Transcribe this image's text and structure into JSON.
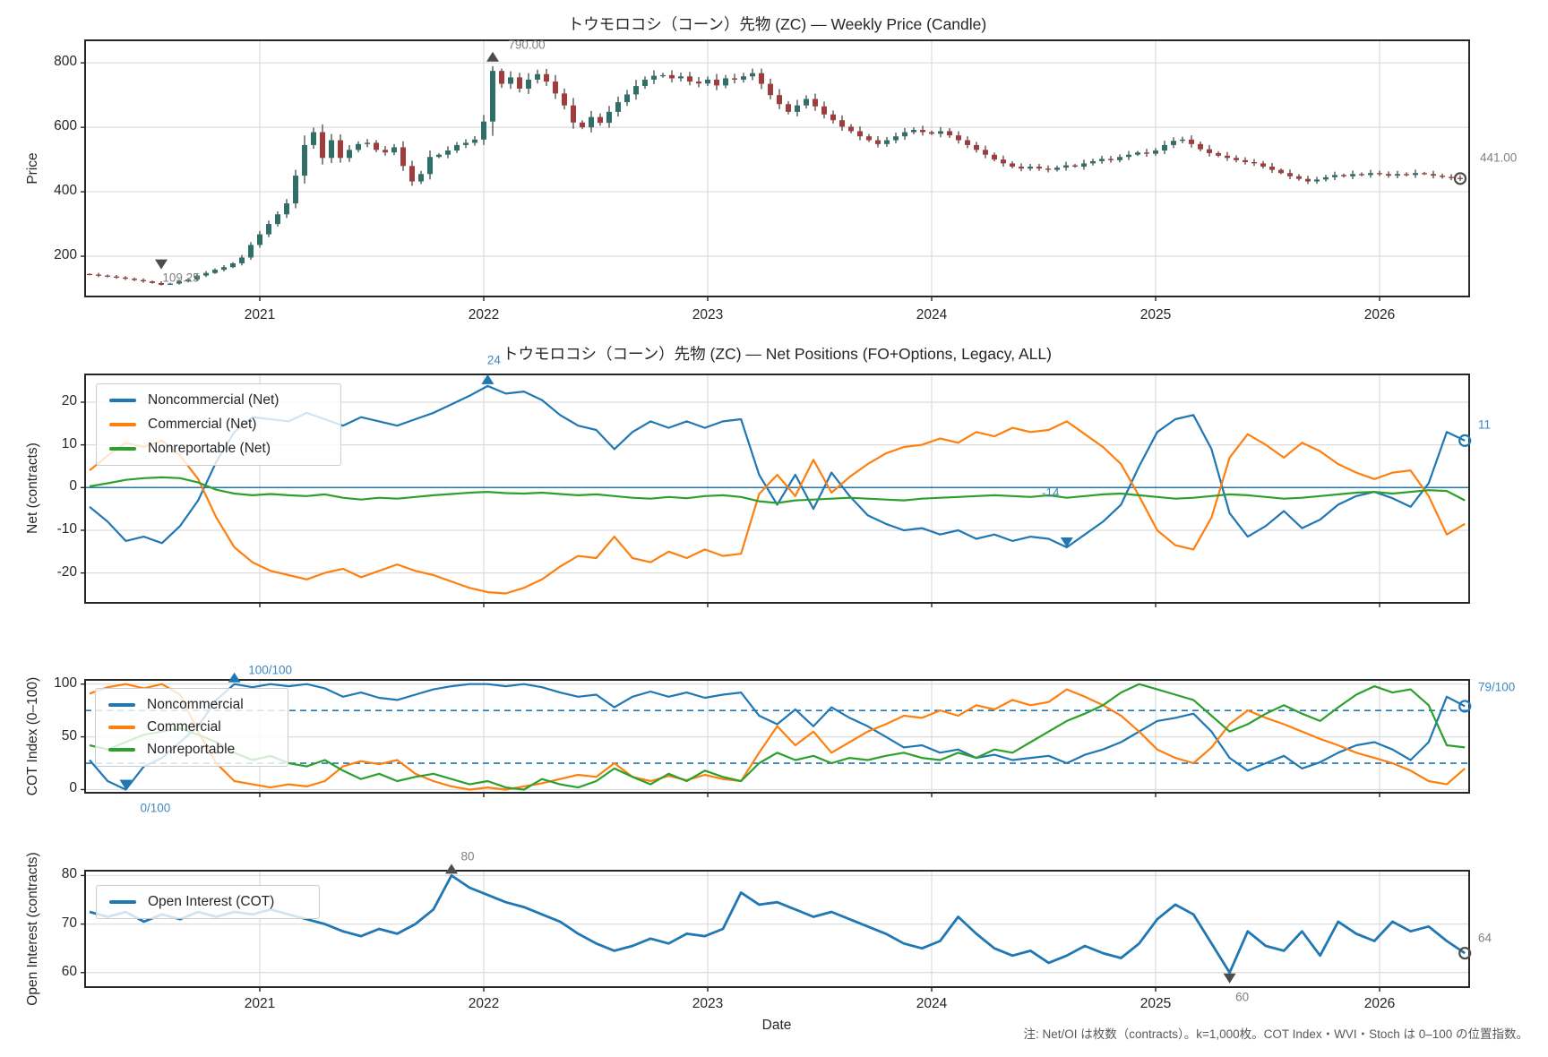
{
  "footnote": "注: Net/OI は枚数（contracts）。k=1,000枚。COT Index・WVI・Stoch は 0–100 の位置指数。",
  "xlabel": "Date",
  "year_ticks": [
    "2021",
    "2022",
    "2023",
    "2024",
    "2025",
    "2026"
  ],
  "colors": {
    "noncommercial": "#1f77b4",
    "commercial": "#ff7f0e",
    "nonreportable": "#2ca02c",
    "open_interest": "#1f77b4",
    "candle_up": "#2e6f68",
    "candle_down": "#a23b3b",
    "wick": "#3a3a3a",
    "grid": "#dcdcdc",
    "spine": "#262626",
    "zero_line": "#1f77b4",
    "threshold_dashed": "#1f77b4",
    "annotation_blue": "#4089c0",
    "annotation_gray": "#808080",
    "marker_dark": "#4d4d4d"
  },
  "chart_data": [
    {
      "id": "price",
      "type": "candlestick",
      "title": "トウモロコシ（コーン）先物 (ZC) — Weekly Price (Candle)",
      "ylabel": "Price",
      "yticks": [
        200,
        400,
        600,
        800
      ],
      "ylim": [
        75,
        870
      ],
      "xlim": [
        2020.22,
        2026.4
      ],
      "x_start": 2020.24,
      "x_step": 0.04,
      "closes": [
        143,
        140,
        137,
        134,
        130,
        126,
        122,
        117,
        111,
        115,
        122,
        128,
        140,
        148,
        158,
        166,
        178,
        196,
        235,
        268,
        300,
        330,
        364,
        450,
        545,
        585,
        505,
        560,
        505,
        530,
        548,
        552,
        530,
        522,
        538,
        480,
        432,
        455,
        508,
        515,
        528,
        545,
        552,
        562,
        618,
        775,
        735,
        755,
        720,
        748,
        765,
        742,
        705,
        668,
        615,
        600,
        632,
        614,
        648,
        678,
        702,
        728,
        748,
        760,
        762,
        752,
        758,
        742,
        736,
        748,
        730,
        752,
        748,
        758,
        768,
        735,
        700,
        672,
        648,
        668,
        688,
        665,
        640,
        622,
        602,
        588,
        572,
        560,
        548,
        560,
        572,
        585,
        592,
        585,
        580,
        588,
        575,
        560,
        545,
        530,
        515,
        500,
        488,
        478,
        472,
        478,
        472,
        468,
        475,
        482,
        478,
        488,
        495,
        502,
        498,
        508,
        515,
        522,
        518,
        528,
        545,
        558,
        562,
        548,
        532,
        520,
        512,
        505,
        498,
        492,
        488,
        478,
        468,
        458,
        448,
        440,
        432,
        438,
        445,
        452,
        448,
        455,
        452,
        458,
        455,
        450,
        455,
        452,
        458,
        455,
        450,
        446,
        443,
        441
      ],
      "annotations": {
        "max": {
          "t": 2022.04,
          "value": 790.0,
          "label": "790.00"
        },
        "min": {
          "t": 2020.56,
          "value": 109.25,
          "label": "109.25"
        },
        "last": {
          "value": 441.0,
          "label": "441.00"
        }
      }
    },
    {
      "id": "net",
      "type": "line",
      "title": "トウモロコシ（コーン）先物 (ZC) — Net Positions (FO+Options, Legacy, ALL)",
      "ylabel": "Net (contracts)",
      "yticks": [
        -20,
        -10,
        0,
        10,
        20
      ],
      "ylim": [
        -27,
        26.5
      ],
      "x_start": 2020.24,
      "x_step": 0.0808,
      "zero_line": 0,
      "series": [
        {
          "name": "Noncommercial (Net)",
          "color_key": "noncommercial",
          "values": [
            -4.5,
            -8,
            -12.5,
            -11.5,
            -13,
            -9,
            -3,
            6,
            13,
            16.5,
            16,
            15.5,
            17.5,
            16,
            14.5,
            16.5,
            15.5,
            14.5,
            16,
            17.5,
            19.5,
            21.5,
            23.8,
            22,
            22.5,
            20.5,
            17,
            14.5,
            13.5,
            9,
            13,
            15.5,
            14,
            15.5,
            14,
            15.5,
            16,
            3,
            -4,
            3,
            -5,
            3.5,
            -2,
            -6.5,
            -8.5,
            -10,
            -9.5,
            -11,
            -10,
            -12,
            -11,
            -12.5,
            -11.5,
            -12,
            -14,
            -11,
            -8,
            -4,
            5,
            13,
            16,
            17,
            9,
            -6,
            -11.5,
            -9,
            -5.5,
            -9.5,
            -7.5,
            -4,
            -2,
            -1,
            -2.5,
            -4.5,
            1,
            13,
            11
          ]
        },
        {
          "name": "Commercial (Net)",
          "color_key": "commercial",
          "values": [
            4,
            7.5,
            10.5,
            9.5,
            11,
            7.5,
            2,
            -7,
            -14,
            -17.5,
            -19.5,
            -20.5,
            -21.5,
            -20,
            -19,
            -21,
            -19.5,
            -18,
            -19.5,
            -20.5,
            -22,
            -23.5,
            -24.5,
            -24.8,
            -23.5,
            -21.5,
            -18.5,
            -16,
            -16.5,
            -11.5,
            -16.5,
            -17.5,
            -15,
            -16.5,
            -14.5,
            -16,
            -15.5,
            -1.5,
            3,
            -2,
            6.5,
            -1.2,
            2.5,
            5.5,
            8,
            9.5,
            10,
            11.5,
            10.5,
            13,
            12,
            14,
            13,
            13.5,
            15.5,
            12.5,
            9.5,
            5.5,
            -2,
            -10,
            -13.5,
            -14.5,
            -7,
            7,
            12.5,
            10,
            7,
            10.5,
            8.5,
            5.5,
            3.5,
            2,
            3.5,
            4,
            -2,
            -11,
            -8.5
          ]
        },
        {
          "name": "Nonreportable (Net)",
          "color_key": "nonreportable",
          "values": [
            0.3,
            1,
            1.8,
            2.2,
            2.4,
            2.2,
            1.2,
            -0.5,
            -1.4,
            -1.8,
            -1.5,
            -1.8,
            -2,
            -1.6,
            -2.4,
            -2.8,
            -2.4,
            -2.6,
            -2.2,
            -1.8,
            -1.5,
            -1.2,
            -1,
            -1.3,
            -1.4,
            -1.2,
            -1.5,
            -1.8,
            -1.6,
            -2,
            -2.4,
            -2.6,
            -2.2,
            -2.5,
            -2,
            -1.8,
            -2.2,
            -3.2,
            -3.6,
            -3,
            -2.8,
            -2.6,
            -2.4,
            -2.6,
            -2.8,
            -3,
            -2.6,
            -2.4,
            -2.2,
            -2,
            -1.8,
            -2,
            -2.2,
            -1.8,
            -2.4,
            -2,
            -1.6,
            -1.4,
            -1.8,
            -2.2,
            -2.6,
            -2.4,
            -2,
            -1.6,
            -1.8,
            -2.2,
            -2.6,
            -2.4,
            -2,
            -1.6,
            -1.2,
            -1,
            -1.4,
            -1,
            -0.6,
            -0.8,
            -3
          ]
        }
      ],
      "annotations": {
        "peak": {
          "t": 2022.0176,
          "value": 23.8,
          "label": "24"
        },
        "trough": {
          "t": 2024.6032,
          "value": -14,
          "label": "-14"
        },
        "last": {
          "value": 11,
          "label": "11"
        }
      }
    },
    {
      "id": "cot",
      "type": "line",
      "ylabel": "COT Index (0–100)",
      "yticks": [
        0,
        50,
        100
      ],
      "ylim": [
        -3,
        104
      ],
      "thresholds": [
        25,
        75
      ],
      "x_start": 2020.24,
      "x_step": 0.0808,
      "series": [
        {
          "name": "Noncommercial",
          "color_key": "noncommercial",
          "values": [
            28,
            8,
            0,
            22,
            30,
            45,
            60,
            85,
            100,
            97,
            100,
            98,
            100,
            96,
            88,
            92,
            87,
            85,
            90,
            95,
            98,
            100,
            100,
            98,
            100,
            97,
            92,
            88,
            90,
            78,
            88,
            93,
            88,
            92,
            87,
            90,
            92,
            70,
            62,
            76,
            60,
            78,
            68,
            60,
            50,
            40,
            42,
            35,
            38,
            30,
            33,
            28,
            30,
            32,
            25,
            33,
            38,
            45,
            55,
            65,
            68,
            72,
            55,
            30,
            18,
            25,
            32,
            20,
            26,
            35,
            42,
            45,
            38,
            28,
            45,
            88,
            79
          ]
        },
        {
          "name": "Commercial",
          "color_key": "commercial",
          "values": [
            91,
            97,
            100,
            96,
            100,
            90,
            55,
            25,
            8,
            5,
            2,
            5,
            3,
            8,
            22,
            27,
            24,
            28,
            15,
            8,
            3,
            0,
            2,
            0,
            3,
            6,
            10,
            14,
            12,
            25,
            12,
            8,
            13,
            9,
            14,
            10,
            8,
            35,
            60,
            42,
            55,
            35,
            45,
            55,
            62,
            70,
            68,
            75,
            70,
            80,
            76,
            85,
            80,
            83,
            95,
            88,
            80,
            70,
            55,
            38,
            30,
            25,
            40,
            62,
            75,
            68,
            62,
            55,
            48,
            42,
            35,
            30,
            25,
            18,
            8,
            5,
            20
          ]
        },
        {
          "name": "Nonreportable",
          "color_key": "nonreportable",
          "values": [
            42,
            38,
            45,
            52,
            55,
            58,
            52,
            45,
            35,
            28,
            32,
            25,
            22,
            28,
            18,
            10,
            15,
            8,
            12,
            15,
            10,
            5,
            8,
            2,
            0,
            10,
            5,
            2,
            8,
            20,
            12,
            5,
            15,
            8,
            18,
            12,
            8,
            25,
            35,
            28,
            32,
            25,
            30,
            28,
            32,
            35,
            30,
            28,
            35,
            30,
            38,
            35,
            45,
            55,
            65,
            72,
            80,
            92,
            100,
            95,
            90,
            85,
            70,
            55,
            62,
            72,
            80,
            72,
            65,
            78,
            90,
            98,
            92,
            95,
            80,
            42,
            40
          ]
        }
      ],
      "annotations": {
        "peak": {
          "t": 2020.8864,
          "value": 100,
          "label": "100/100"
        },
        "trough": {
          "t": 2020.4016,
          "value": 0,
          "label": "0/100"
        },
        "last": {
          "value": 79,
          "label": "79/100"
        }
      }
    },
    {
      "id": "oi",
      "type": "line",
      "ylabel": "Open Interest (contracts)",
      "yticks": [
        60,
        70,
        80
      ],
      "ylim": [
        57,
        81
      ],
      "x_start": 2020.24,
      "x_step": 0.0808,
      "series": [
        {
          "name": "Open Interest (COT)",
          "color_key": "open_interest",
          "values": [
            72.5,
            71.5,
            72.5,
            70.5,
            72,
            71,
            72.5,
            71.5,
            72.5,
            72,
            73,
            72,
            71,
            70,
            68.5,
            67.5,
            69,
            68,
            70,
            73,
            80,
            77.5,
            76,
            74.5,
            73.5,
            72,
            70.5,
            68,
            66,
            64.5,
            65.5,
            67,
            66,
            68,
            67.5,
            69,
            76.5,
            74,
            74.5,
            73,
            71.5,
            72.5,
            71,
            69.5,
            68,
            66,
            65,
            66.5,
            71.5,
            68,
            65,
            63.5,
            64.5,
            62,
            63.5,
            65.5,
            64,
            63,
            66,
            71,
            74,
            72,
            66,
            60,
            68.5,
            65.5,
            64.5,
            68.5,
            63.5,
            70.5,
            68,
            66.5,
            70.5,
            68.5,
            69.5,
            66.5,
            64
          ]
        }
      ],
      "annotations": {
        "peak": {
          "t": 2021.856,
          "value": 80,
          "label": "80"
        },
        "trough": {
          "t": 2025.3304,
          "value": 60,
          "label": "60"
        },
        "last": {
          "value": 64,
          "label": "64"
        }
      }
    }
  ]
}
